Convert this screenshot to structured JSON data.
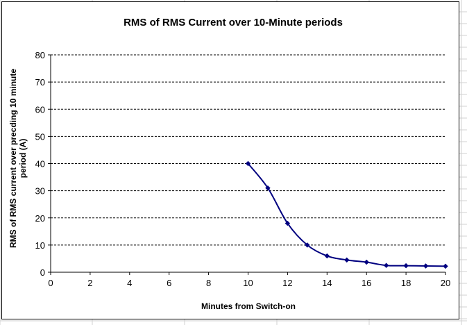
{
  "chart_data": {
    "type": "line",
    "title": "RMS of RMS Current over 10-Minute periods",
    "xlabel": "Minutes from Switch-on",
    "ylabel_lines": [
      "RMS of RMS current over precding 10 minute",
      "period (A)"
    ],
    "xlim": [
      0,
      20
    ],
    "ylim": [
      0,
      80
    ],
    "x_ticks": [
      0,
      2,
      4,
      6,
      8,
      10,
      12,
      14,
      16,
      18,
      20
    ],
    "y_ticks": [
      0,
      10,
      20,
      30,
      40,
      50,
      60,
      70,
      80
    ],
    "grid": "horizontal-dashed",
    "legend": "none",
    "series": [
      {
        "color": "#000080",
        "marker": "diamond",
        "x": [
          10,
          11,
          12,
          13,
          14,
          15,
          16,
          17,
          18,
          19,
          20
        ],
        "y": [
          40,
          31,
          18,
          10,
          6,
          4.5,
          3.7,
          2.5,
          2.4,
          2.3,
          2.2
        ]
      }
    ]
  }
}
